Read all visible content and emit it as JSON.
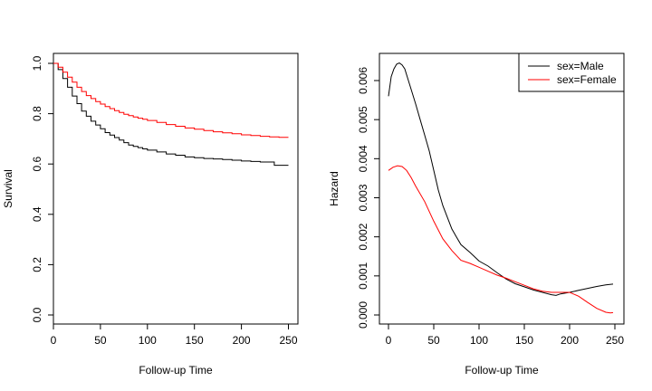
{
  "chart_data": [
    {
      "type": "line",
      "xlabel": "Follow-up Time",
      "ylabel": "Survival",
      "xlim": [
        0,
        250
      ],
      "ylim": [
        0,
        1
      ],
      "xticks": [
        0,
        50,
        100,
        150,
        200,
        250
      ],
      "yticks": [
        0.0,
        0.2,
        0.4,
        0.6,
        0.8,
        1.0
      ],
      "xtick_labels": [
        "0",
        "50",
        "100",
        "150",
        "200",
        "250"
      ],
      "ytick_labels": [
        "0.0",
        "0.2",
        "0.4",
        "0.6",
        "0.8",
        "1.0"
      ],
      "step": true,
      "grid": false,
      "series": [
        {
          "color": "#000000",
          "x": [
            0,
            5,
            10,
            15,
            20,
            25,
            30,
            35,
            40,
            45,
            50,
            55,
            60,
            65,
            70,
            75,
            80,
            85,
            90,
            95,
            100,
            110,
            120,
            130,
            140,
            150,
            160,
            170,
            180,
            190,
            200,
            210,
            220,
            234,
            235,
            250
          ],
          "y": [
            1.0,
            0.975,
            0.94,
            0.905,
            0.87,
            0.84,
            0.81,
            0.79,
            0.77,
            0.755,
            0.74,
            0.725,
            0.715,
            0.705,
            0.695,
            0.685,
            0.675,
            0.67,
            0.665,
            0.66,
            0.655,
            0.648,
            0.64,
            0.635,
            0.628,
            0.625,
            0.622,
            0.62,
            0.618,
            0.615,
            0.612,
            0.61,
            0.608,
            0.608,
            0.595,
            0.595
          ]
        },
        {
          "color": "#ff0000",
          "x": [
            0,
            5,
            10,
            15,
            20,
            25,
            30,
            35,
            40,
            45,
            50,
            55,
            60,
            65,
            70,
            75,
            80,
            85,
            90,
            95,
            100,
            110,
            120,
            130,
            140,
            150,
            160,
            170,
            180,
            190,
            200,
            210,
            220,
            230,
            240,
            250
          ],
          "y": [
            1.0,
            0.985,
            0.965,
            0.945,
            0.925,
            0.905,
            0.888,
            0.872,
            0.86,
            0.848,
            0.838,
            0.828,
            0.82,
            0.812,
            0.805,
            0.798,
            0.792,
            0.787,
            0.782,
            0.778,
            0.773,
            0.765,
            0.757,
            0.75,
            0.743,
            0.738,
            0.733,
            0.728,
            0.724,
            0.72,
            0.716,
            0.713,
            0.71,
            0.708,
            0.706,
            0.706
          ]
        }
      ]
    },
    {
      "type": "line",
      "xlabel": "Follow-up Time",
      "ylabel": "Hazard",
      "xlim": [
        0,
        250
      ],
      "ylim": [
        0,
        0.0065
      ],
      "xticks": [
        0,
        50,
        100,
        150,
        200,
        250
      ],
      "yticks": [
        0.0,
        0.001,
        0.002,
        0.003,
        0.004,
        0.005,
        0.006
      ],
      "xtick_labels": [
        "0",
        "50",
        "100",
        "150",
        "200",
        "250"
      ],
      "ytick_labels": [
        "0.000",
        "0.001",
        "0.002",
        "0.003",
        "0.004",
        "0.005",
        "0.006"
      ],
      "grid": false,
      "legend_position": "top-right",
      "series": [
        {
          "name": "sex=Male",
          "color": "#000000",
          "x": [
            0,
            3,
            6,
            9,
            12,
            15,
            18,
            22,
            26,
            30,
            35,
            40,
            45,
            50,
            55,
            60,
            65,
            70,
            75,
            80,
            90,
            100,
            110,
            120,
            130,
            140,
            150,
            160,
            170,
            180,
            185,
            190,
            200,
            210,
            220,
            230,
            240,
            248
          ],
          "y": [
            0.0056,
            0.0061,
            0.0063,
            0.00642,
            0.00645,
            0.0064,
            0.0063,
            0.006,
            0.0057,
            0.0054,
            0.005,
            0.0046,
            0.0042,
            0.0037,
            0.0032,
            0.0028,
            0.0025,
            0.0022,
            0.002,
            0.0018,
            0.0016,
            0.00138,
            0.00125,
            0.00108,
            0.00092,
            0.0008,
            0.00072,
            0.00064,
            0.00058,
            0.00052,
            0.0005,
            0.00054,
            0.00058,
            0.00063,
            0.00068,
            0.00073,
            0.00077,
            0.00079
          ]
        },
        {
          "name": "sex=Female",
          "color": "#ff0000",
          "x": [
            0,
            5,
            10,
            15,
            20,
            25,
            30,
            40,
            50,
            60,
            70,
            80,
            90,
            100,
            110,
            120,
            130,
            140,
            150,
            160,
            170,
            180,
            190,
            200,
            210,
            220,
            230,
            240,
            245,
            248
          ],
          "y": [
            0.0037,
            0.00378,
            0.00382,
            0.0038,
            0.0037,
            0.00352,
            0.0033,
            0.0029,
            0.0024,
            0.00195,
            0.00165,
            0.0014,
            0.00132,
            0.00122,
            0.00112,
            0.00102,
            0.00094,
            0.00085,
            0.00076,
            0.00067,
            0.00061,
            0.00058,
            0.00058,
            0.00058,
            0.00048,
            0.00032,
            0.00017,
            7e-05,
            5e-05,
            6e-05
          ]
        }
      ]
    }
  ]
}
